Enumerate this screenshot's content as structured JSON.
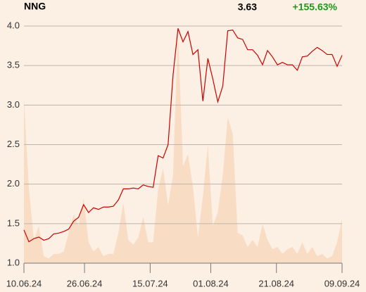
{
  "header": {
    "symbol": "NNG",
    "price": "3.63",
    "change": "+155.63%"
  },
  "chart_data": {
    "type": "line",
    "xlim": [
      0,
      63
    ],
    "xticks": [
      {
        "value": 0,
        "label": "10.06.24"
      },
      {
        "value": 12,
        "label": "26.06.24"
      },
      {
        "value": 25,
        "label": "15.07.24"
      },
      {
        "value": 37,
        "label": "01.08.24"
      },
      {
        "value": 50,
        "label": "21.08.24"
      },
      {
        "value": 63,
        "label": "09.09.24"
      }
    ],
    "ylim": [
      1.0,
      4.0
    ],
    "yticks": [
      {
        "value": 1.0,
        "label": "1.0"
      },
      1.5,
      {
        "value": 2.0,
        "label": "2.0"
      },
      2.5,
      {
        "value": 3.0,
        "label": "3.0"
      },
      3.5,
      {
        "value": 4.0,
        "label": "4.0"
      }
    ],
    "y2lim": [
      0,
      100
    ],
    "grid": true,
    "series": [
      {
        "name": "price",
        "color": "#cc0000",
        "values": [
          1.42,
          1.27,
          1.31,
          1.33,
          1.29,
          1.31,
          1.37,
          1.38,
          1.4,
          1.43,
          1.53,
          1.58,
          1.74,
          1.64,
          1.7,
          1.68,
          1.71,
          1.71,
          1.72,
          1.8,
          1.94,
          1.94,
          1.95,
          1.94,
          1.99,
          1.97,
          1.96,
          2.36,
          2.33,
          2.5,
          3.38,
          3.97,
          3.8,
          3.93,
          3.64,
          3.7,
          3.05,
          3.59,
          3.33,
          3.04,
          3.24,
          3.94,
          3.95,
          3.85,
          3.83,
          3.7,
          3.7,
          3.63,
          3.51,
          3.69,
          3.61,
          3.51,
          3.54,
          3.51,
          3.51,
          3.44,
          3.61,
          3.62,
          3.68,
          3.73,
          3.69,
          3.64,
          3.64,
          3.49,
          3.63
        ]
      },
      {
        "name": "volume",
        "color": "#f9dcc4",
        "axis": "y2",
        "values": [
          71,
          32,
          10,
          16,
          3,
          2,
          4,
          4,
          5,
          13,
          21,
          16,
          28,
          9,
          5,
          7,
          3,
          4,
          4,
          13,
          26,
          10,
          8,
          11,
          20,
          9,
          9,
          32,
          41,
          25,
          38,
          100,
          42,
          47,
          33,
          11,
          29,
          51,
          16,
          22,
          38,
          63,
          56,
          13,
          12,
          7,
          10,
          7,
          17,
          10,
          6,
          7,
          4,
          6,
          7,
          4,
          9,
          4,
          7,
          3,
          4,
          2,
          3,
          9,
          19
        ]
      }
    ]
  }
}
